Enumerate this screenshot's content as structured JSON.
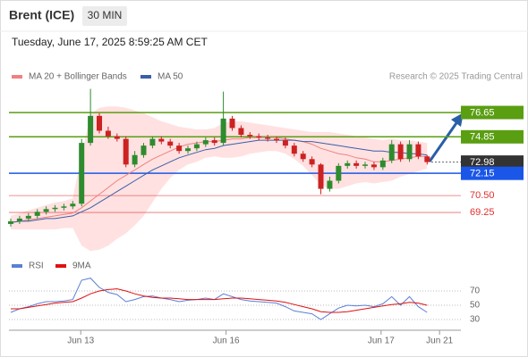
{
  "header": {
    "symbol": "Brent (ICE)",
    "interval": "30 MIN",
    "datetime": "Tuesday, June 17, 2025 8:59:25 AM CET"
  },
  "chart_data": {
    "type": "candlestick",
    "legend": [
      "MA 20 + Bollinger Bands",
      "MA 50"
    ],
    "credit": "Research © 2025 Trading Central",
    "up_color": "#2e8b2e",
    "down_color": "#cc2222",
    "ylim": [
      66.15,
      78.57
    ],
    "xlim": [
      0,
      50.3
    ],
    "xticks": [
      {
        "value": 7.9,
        "label": "Jun 13"
      },
      {
        "value": 24.3,
        "label": "Jun 16"
      },
      {
        "value": 41.8,
        "label": "Jun 17"
      },
      {
        "value": 48.4,
        "label": "Jun 21"
      }
    ],
    "open": [
      68.4,
      68.6,
      68.8,
      69.0,
      69.3,
      69.5,
      69.6,
      69.7,
      69.9,
      74.4,
      76.4,
      75.3,
      74.9,
      74.7,
      72.8,
      73.5,
      74.2,
      74.7,
      74.5,
      74.2,
      73.8,
      74.0,
      74.3,
      74.6,
      74.4,
      76.2,
      75.5,
      75.0,
      74.9,
      74.8,
      74.7,
      74.6,
      74.2,
      73.6,
      73.2,
      72.8,
      71.0,
      71.6,
      72.7,
      72.9,
      72.7,
      72.8,
      72.6,
      73.1,
      74.3,
      73.2,
      74.3,
      73.4
    ],
    "high": [
      68.8,
      69.0,
      69.2,
      69.5,
      69.7,
      69.8,
      69.9,
      70.1,
      74.7,
      78.4,
      76.6,
      75.6,
      75.1,
      74.9,
      73.8,
      74.4,
      74.9,
      74.9,
      74.7,
      74.4,
      74.2,
      74.5,
      74.8,
      74.8,
      78.2,
      76.4,
      75.7,
      75.2,
      75.1,
      75.0,
      74.9,
      74.8,
      74.4,
      73.8,
      73.4,
      72.9,
      71.9,
      72.9,
      73.1,
      73.1,
      73.0,
      73.0,
      73.3,
      74.6,
      74.5,
      74.6,
      74.5,
      73.5
    ],
    "low": [
      68.2,
      68.4,
      68.6,
      68.8,
      69.1,
      69.3,
      69.4,
      69.5,
      69.7,
      74.2,
      75.1,
      74.7,
      74.5,
      72.6,
      72.6,
      73.3,
      74.0,
      74.3,
      74.0,
      73.6,
      73.6,
      73.8,
      74.1,
      74.2,
      74.2,
      75.3,
      74.8,
      74.7,
      74.6,
      74.5,
      74.4,
      74.0,
      73.4,
      73.0,
      72.6,
      70.6,
      70.8,
      71.4,
      72.5,
      72.5,
      72.5,
      72.4,
      72.4,
      72.9,
      73.0,
      73.0,
      73.2,
      72.8
    ],
    "close": [
      68.6,
      68.8,
      69.0,
      69.3,
      69.5,
      69.6,
      69.7,
      69.9,
      74.4,
      76.4,
      75.3,
      74.9,
      74.7,
      72.8,
      73.5,
      74.2,
      74.7,
      74.5,
      74.2,
      73.8,
      74.0,
      74.3,
      74.6,
      74.4,
      76.2,
      75.5,
      75.0,
      74.9,
      74.8,
      74.7,
      74.6,
      74.2,
      73.6,
      73.2,
      72.8,
      71.0,
      71.6,
      72.7,
      72.9,
      72.7,
      72.8,
      72.6,
      73.1,
      74.3,
      73.2,
      74.3,
      73.4,
      72.98
    ],
    "bollinger": {
      "color": "#ffd9d9",
      "upper": [
        69.0,
        69.2,
        69.4,
        69.6,
        69.8,
        70.0,
        70.1,
        70.3,
        73.5,
        76.5,
        77.0,
        77.1,
        77.1,
        77.0,
        76.8,
        76.6,
        76.3,
        76.0,
        75.8,
        75.6,
        75.5,
        75.4,
        75.4,
        75.5,
        75.9,
        76.0,
        76.0,
        75.9,
        75.8,
        75.7,
        75.6,
        75.5,
        75.4,
        75.3,
        75.2,
        75.2,
        75.2,
        75.1,
        75.0,
        74.9,
        74.8,
        74.7,
        74.6,
        74.7,
        74.6,
        74.6,
        74.5,
        74.4
      ],
      "lower": [
        68.0,
        68.0,
        68.0,
        68.0,
        68.0,
        68.0,
        68.1,
        68.1,
        66.8,
        66.4,
        66.5,
        66.8,
        67.3,
        67.7,
        68.3,
        69.0,
        70.0,
        71.0,
        71.8,
        72.4,
        72.8,
        73.0,
        73.3,
        73.4,
        73.3,
        73.3,
        73.4,
        73.6,
        73.7,
        73.8,
        73.8,
        73.6,
        73.2,
        72.7,
        72.0,
        71.3,
        71.0,
        71.0,
        71.2,
        71.4,
        71.5,
        71.4,
        71.5,
        71.6,
        71.9,
        72.1,
        72.3,
        72.5
      ]
    },
    "series": [
      {
        "name": "MA 20",
        "color": "#f08080",
        "values": [
          68.5,
          68.6,
          68.7,
          68.8,
          68.9,
          69.0,
          69.1,
          69.2,
          69.6,
          70.1,
          70.6,
          71.1,
          71.6,
          72.0,
          72.4,
          72.8,
          73.2,
          73.5,
          73.8,
          74.1,
          74.3,
          74.4,
          74.5,
          74.5,
          74.6,
          74.7,
          74.7,
          74.8,
          74.8,
          74.8,
          74.8,
          74.7,
          74.6,
          74.5,
          74.3,
          74.0,
          73.8,
          73.6,
          73.5,
          73.3,
          73.2,
          73.0,
          73.0,
          73.1,
          73.2,
          73.3,
          73.4,
          73.4
        ]
      },
      {
        "name": "MA 50",
        "color": "#3a5fa8",
        "values": [
          68.5,
          68.6,
          68.6,
          68.7,
          68.8,
          68.8,
          68.9,
          69.0,
          69.3,
          69.6,
          70.0,
          70.4,
          70.8,
          71.2,
          71.6,
          72.0,
          72.4,
          72.7,
          73.0,
          73.3,
          73.5,
          73.7,
          73.9,
          74.0,
          74.2,
          74.3,
          74.4,
          74.5,
          74.6,
          74.6,
          74.6,
          74.6,
          74.6,
          74.5,
          74.5,
          74.4,
          74.3,
          74.2,
          74.1,
          74.0,
          73.9,
          73.8,
          73.8,
          73.7,
          73.7,
          73.6,
          73.6,
          73.5
        ]
      }
    ],
    "levels": [
      {
        "value": 76.65,
        "label": "76.65",
        "color": "#5a9e12",
        "style": "box"
      },
      {
        "value": 74.85,
        "label": "74.85",
        "color": "#5a9e12",
        "style": "box"
      },
      {
        "value": 72.98,
        "label": "72.98",
        "color": "#333333",
        "style": "current"
      },
      {
        "value": 72.15,
        "label": "72.15",
        "color": "#1a56e8",
        "style": "box"
      },
      {
        "value": 70.5,
        "label": "70.50",
        "color": "#e03030",
        "style": "text"
      },
      {
        "value": 69.25,
        "label": "69.25",
        "color": "#e03030",
        "style": "text"
      }
    ]
  },
  "rsi_chart": {
    "type": "line",
    "ylim": [
      17.5,
      102.5
    ],
    "yticks": [
      70,
      50,
      30
    ],
    "series": [
      {
        "name": "RSI",
        "color": "#5b7fd6",
        "values": [
          40,
          45,
          48,
          52,
          55,
          55,
          56,
          58,
          85,
          88,
          75,
          68,
          65,
          55,
          58,
          62,
          63,
          60,
          58,
          55,
          57,
          58,
          60,
          58,
          66,
          62,
          58,
          56,
          55,
          54,
          53,
          48,
          42,
          40,
          38,
          30,
          38,
          46,
          50,
          49,
          50,
          48,
          52,
          62,
          50,
          62,
          48,
          40
        ]
      },
      {
        "name": "9MA",
        "color": "#e01010",
        "values": [
          45,
          45,
          47,
          49,
          51,
          53,
          54,
          55,
          60,
          66,
          70,
          72,
          73,
          70,
          66,
          63,
          61,
          60,
          60,
          59,
          58,
          58,
          58,
          58,
          59,
          60,
          60,
          59,
          58,
          57,
          56,
          54,
          51,
          48,
          45,
          41,
          40,
          40,
          41,
          43,
          45,
          47,
          49,
          51,
          52,
          54,
          53,
          50
        ]
      }
    ]
  }
}
